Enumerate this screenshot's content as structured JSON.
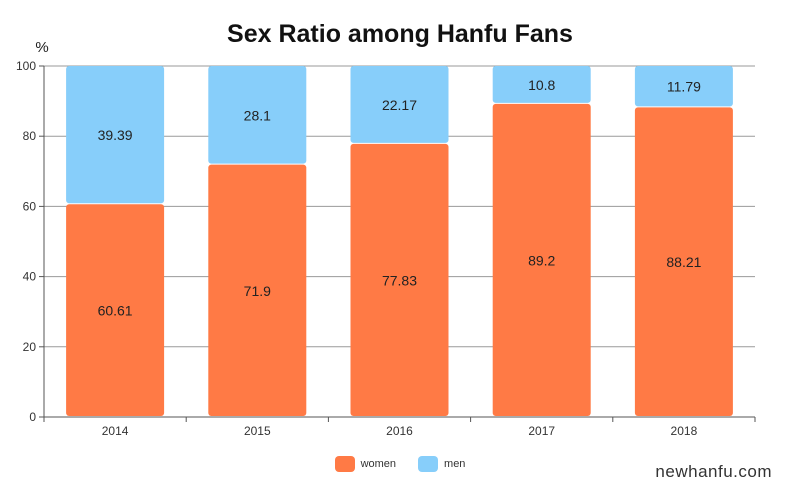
{
  "chart_data": {
    "type": "bar",
    "stacked": true,
    "title": "Sex Ratio among Hanfu Fans",
    "ylabel": "%",
    "xlabel": "",
    "categories": [
      "2014",
      "2015",
      "2016",
      "2017",
      "2018"
    ],
    "series": [
      {
        "name": "women",
        "color": "#FF7A45",
        "values": [
          60.61,
          71.9,
          77.83,
          89.2,
          88.21
        ]
      },
      {
        "name": "men",
        "color": "#87CEFA",
        "values": [
          39.39,
          28.1,
          22.17,
          10.8,
          11.79
        ]
      }
    ],
    "ylim": [
      0,
      100
    ],
    "yticks": [
      0,
      20,
      40,
      60,
      80,
      100
    ],
    "grid": true,
    "legend": "bottom-center"
  },
  "watermark": "newhanfu.com"
}
